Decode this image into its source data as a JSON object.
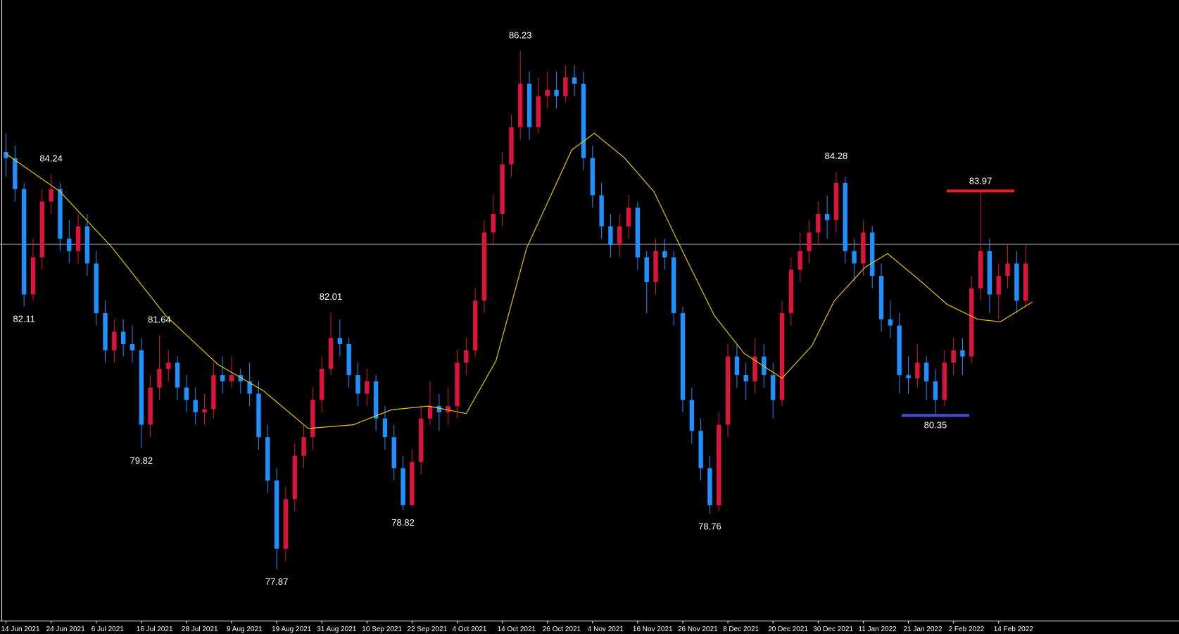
{
  "chart_data": {
    "type": "candlestick",
    "categories": [
      "14 Jun 2021",
      null,
      null,
      null,
      null,
      "24 Jun 2021",
      null,
      null,
      null,
      null,
      "6 Jul 2021",
      null,
      null,
      null,
      null,
      "16 Jul 2021",
      null,
      null,
      null,
      null,
      "28 Jul 2021",
      null,
      null,
      null,
      null,
      "9 Aug 2021",
      null,
      null,
      null,
      null,
      "19 Aug 2021",
      null,
      null,
      null,
      null,
      "31 Aug 2021",
      null,
      null,
      null,
      null,
      "10 Sep 2021",
      null,
      null,
      null,
      null,
      "22 Sep 2021",
      null,
      null,
      null,
      null,
      "4 Oct 2021",
      null,
      null,
      null,
      null,
      "14 Oct 2021",
      null,
      null,
      null,
      null,
      "26 Oct 2021",
      null,
      null,
      null,
      null,
      "4 Nov 2021",
      null,
      null,
      null,
      null,
      "16 Nov 2021",
      null,
      null,
      null,
      null,
      "26 Nov 2021",
      null,
      null,
      null,
      null,
      "8 Dec 2021",
      null,
      null,
      null,
      null,
      "20 Dec 2021",
      null,
      null,
      null,
      null,
      "30 Dec 2021",
      null,
      null,
      null,
      null,
      "11 Jan 2022",
      null,
      null,
      null,
      null,
      "21 Jan 2022",
      null,
      null,
      null,
      null,
      "2 Feb 2022",
      null,
      null,
      null,
      null,
      "14 Feb 2022",
      null,
      null,
      null
    ],
    "ohlc": [
      [
        84.6,
        84.9,
        84.2,
        84.5
      ],
      [
        84.5,
        84.7,
        83.8,
        84.0
      ],
      [
        84.0,
        84.1,
        82.11,
        82.3
      ],
      [
        82.3,
        83.2,
        82.2,
        82.9
      ],
      [
        82.9,
        84.0,
        82.7,
        83.8
      ],
      [
        83.8,
        84.24,
        83.6,
        84.0
      ],
      [
        84.0,
        84.1,
        83.0,
        83.2
      ],
      [
        83.2,
        83.5,
        82.8,
        83.0
      ],
      [
        83.0,
        83.6,
        82.8,
        83.4
      ],
      [
        83.4,
        83.6,
        82.6,
        82.8
      ],
      [
        82.8,
        83.0,
        81.8,
        82.0
      ],
      [
        82.0,
        82.2,
        81.2,
        81.4
      ],
      [
        81.4,
        81.9,
        81.2,
        81.7
      ],
      [
        81.7,
        81.9,
        81.3,
        81.5
      ],
      [
        81.5,
        81.8,
        81.2,
        81.4
      ],
      [
        81.4,
        81.6,
        79.82,
        80.2
      ],
      [
        80.2,
        81.0,
        80.0,
        80.8
      ],
      [
        80.8,
        81.64,
        80.6,
        81.1
      ],
      [
        81.1,
        81.4,
        80.9,
        81.2
      ],
      [
        81.2,
        81.3,
        80.6,
        80.8
      ],
      [
        80.8,
        81.0,
        80.4,
        80.6
      ],
      [
        80.6,
        80.8,
        80.2,
        80.4
      ],
      [
        80.4,
        80.7,
        80.2,
        80.45
      ],
      [
        80.45,
        81.2,
        80.3,
        81.0
      ],
      [
        81.0,
        81.3,
        80.7,
        80.9
      ],
      [
        80.9,
        81.3,
        80.8,
        81.0
      ],
      [
        81.0,
        81.1,
        80.7,
        80.9
      ],
      [
        80.9,
        81.2,
        80.5,
        80.7
      ],
      [
        80.7,
        80.9,
        79.8,
        80.0
      ],
      [
        80.0,
        80.2,
        79.1,
        79.3
      ],
      [
        79.3,
        79.5,
        77.87,
        78.2
      ],
      [
        78.2,
        79.2,
        78.0,
        79.0
      ],
      [
        79.0,
        79.9,
        78.8,
        79.7
      ],
      [
        79.7,
        80.2,
        79.5,
        80.0
      ],
      [
        80.0,
        80.8,
        79.8,
        80.6
      ],
      [
        80.6,
        81.3,
        80.4,
        81.1
      ],
      [
        81.1,
        82.01,
        81.0,
        81.6
      ],
      [
        81.6,
        81.9,
        81.3,
        81.5
      ],
      [
        81.5,
        81.6,
        80.8,
        81.0
      ],
      [
        81.0,
        81.2,
        80.5,
        80.7
      ],
      [
        80.7,
        81.1,
        80.5,
        80.9
      ],
      [
        80.9,
        81.0,
        80.1,
        80.3
      ],
      [
        80.3,
        80.5,
        79.8,
        80.0
      ],
      [
        80.0,
        80.2,
        79.3,
        79.5
      ],
      [
        79.5,
        79.7,
        78.82,
        78.9
      ],
      [
        78.9,
        79.8,
        78.9,
        79.6
      ],
      [
        79.6,
        80.5,
        79.4,
        80.3
      ],
      [
        80.3,
        80.9,
        80.2,
        80.5
      ],
      [
        80.5,
        80.7,
        80.1,
        80.4
      ],
      [
        80.4,
        80.8,
        80.2,
        80.5
      ],
      [
        80.5,
        81.4,
        80.3,
        81.2
      ],
      [
        81.2,
        81.6,
        81.0,
        81.4
      ],
      [
        81.4,
        82.4,
        81.3,
        82.2
      ],
      [
        82.2,
        83.5,
        82.0,
        83.3
      ],
      [
        83.3,
        83.9,
        83.1,
        83.6
      ],
      [
        83.6,
        84.6,
        83.4,
        84.4
      ],
      [
        84.4,
        85.2,
        84.2,
        85.0
      ],
      [
        85.0,
        86.23,
        84.8,
        85.7
      ],
      [
        85.7,
        85.9,
        84.8,
        85.0
      ],
      [
        85.0,
        85.8,
        84.9,
        85.5
      ],
      [
        85.5,
        85.9,
        85.3,
        85.6
      ],
      [
        85.6,
        85.9,
        85.3,
        85.5
      ],
      [
        85.5,
        86.0,
        85.4,
        85.8
      ],
      [
        85.8,
        86.0,
        85.5,
        85.7
      ],
      [
        85.7,
        85.9,
        84.3,
        84.5
      ],
      [
        84.5,
        84.7,
        83.7,
        83.9
      ],
      [
        83.9,
        84.1,
        83.2,
        83.4
      ],
      [
        83.4,
        83.6,
        82.9,
        83.1
      ],
      [
        83.1,
        83.6,
        82.9,
        83.4
      ],
      [
        83.4,
        83.9,
        83.2,
        83.7
      ],
      [
        83.7,
        83.8,
        82.7,
        82.9
      ],
      [
        82.9,
        83.0,
        82.0,
        82.5
      ],
      [
        82.5,
        83.2,
        82.3,
        83.0
      ],
      [
        83.0,
        83.2,
        82.7,
        82.9
      ],
      [
        82.9,
        83.0,
        81.8,
        82.0
      ],
      [
        82.0,
        82.1,
        80.4,
        80.6
      ],
      [
        80.6,
        80.8,
        79.9,
        80.1
      ],
      [
        80.1,
        80.3,
        79.3,
        79.5
      ],
      [
        79.5,
        79.7,
        78.76,
        78.9
      ],
      [
        78.9,
        80.4,
        78.8,
        80.2
      ],
      [
        80.2,
        81.5,
        80.0,
        81.3
      ],
      [
        81.3,
        81.5,
        80.8,
        81.0
      ],
      [
        81.0,
        81.2,
        80.6,
        80.9
      ],
      [
        80.9,
        81.6,
        80.7,
        81.3
      ],
      [
        81.3,
        81.5,
        80.8,
        81.0
      ],
      [
        81.0,
        81.2,
        80.3,
        80.6
      ],
      [
        80.6,
        82.2,
        80.5,
        82.0
      ],
      [
        82.0,
        82.9,
        81.8,
        82.7
      ],
      [
        82.7,
        83.3,
        82.5,
        83.0
      ],
      [
        83.0,
        83.5,
        82.8,
        83.3
      ],
      [
        83.3,
        83.8,
        83.1,
        83.6
      ],
      [
        83.6,
        83.9,
        83.2,
        83.5
      ],
      [
        83.5,
        84.28,
        83.3,
        84.1
      ],
      [
        84.1,
        84.2,
        82.8,
        83.0
      ],
      [
        83.0,
        83.2,
        82.5,
        82.8
      ],
      [
        82.8,
        83.5,
        82.6,
        83.3
      ],
      [
        83.3,
        83.4,
        82.4,
        82.6
      ],
      [
        82.6,
        82.8,
        81.7,
        81.9
      ],
      [
        81.9,
        82.2,
        81.6,
        81.8
      ],
      [
        81.8,
        82.0,
        80.7,
        81.0
      ],
      [
        81.0,
        81.3,
        80.7,
        80.95
      ],
      [
        80.95,
        81.5,
        80.8,
        81.2
      ],
      [
        81.2,
        81.3,
        80.6,
        80.9
      ],
      [
        80.9,
        81.1,
        80.35,
        80.6
      ],
      [
        80.6,
        81.4,
        80.5,
        81.2
      ],
      [
        81.2,
        81.6,
        81.0,
        81.4
      ],
      [
        81.4,
        81.6,
        81.0,
        81.3
      ],
      [
        81.3,
        82.6,
        81.2,
        82.4
      ],
      [
        82.4,
        83.97,
        82.2,
        83.0
      ],
      [
        83.0,
        83.2,
        82.0,
        82.3
      ],
      [
        82.3,
        82.8,
        81.9,
        82.6
      ],
      [
        82.6,
        83.1,
        82.4,
        82.8
      ],
      [
        82.8,
        83.0,
        82.0,
        82.2
      ],
      [
        82.2,
        83.1,
        82.1,
        82.8
      ]
    ],
    "up_color": "#dc143c",
    "down_color": "#1e90ff",
    "ma": {
      "color": "#e6c200",
      "x": [
        0,
        6,
        11.8,
        17.7,
        23.5,
        28.5,
        33.5,
        38.5,
        42.7,
        46.8,
        51,
        54.3,
        57.7,
        62.7,
        65.2,
        68.5,
        71.8,
        75.2,
        78.5,
        81.8,
        86,
        89.3,
        91.8,
        95.2,
        97.7,
        101,
        104.3,
        107.7,
        110.2,
        113.75
      ],
      "values": [
        84.57,
        83.96,
        83.05,
        81.96,
        81.17,
        80.75,
        80.14,
        80.2,
        80.44,
        80.5,
        80.38,
        81.23,
        83.05,
        84.63,
        84.9,
        84.51,
        83.96,
        82.93,
        81.96,
        81.35,
        80.95,
        81.47,
        82.2,
        82.74,
        82.96,
        82.56,
        82.14,
        81.9,
        81.86,
        82.18
      ]
    },
    "price_line": {
      "value": 83.11,
      "color": "#8c96a8"
    },
    "annotations": [
      {
        "value": 84.24,
        "candle": 5,
        "side": "high"
      },
      {
        "value": 82.11,
        "candle": 2,
        "side": "low"
      },
      {
        "value": 81.64,
        "candle": 17,
        "side": "high"
      },
      {
        "value": 79.82,
        "candle": 15,
        "side": "low"
      },
      {
        "value": 77.87,
        "candle": 30,
        "side": "low"
      },
      {
        "value": 82.01,
        "candle": 36,
        "side": "high"
      },
      {
        "value": 78.82,
        "candle": 44,
        "side": "low"
      },
      {
        "value": 86.23,
        "candle": 57,
        "side": "high"
      },
      {
        "value": 78.76,
        "candle": 78,
        "side": "low"
      },
      {
        "value": 84.28,
        "candle": 92,
        "side": "high"
      },
      {
        "value": 83.97,
        "candle": 108,
        "side": "high",
        "bar_color": "#e8202a"
      },
      {
        "value": 80.35,
        "candle": 103,
        "side": "low",
        "bar_color": "#4a4ed8"
      }
    ],
    "ylim": [
      77.04,
      87.05
    ]
  }
}
